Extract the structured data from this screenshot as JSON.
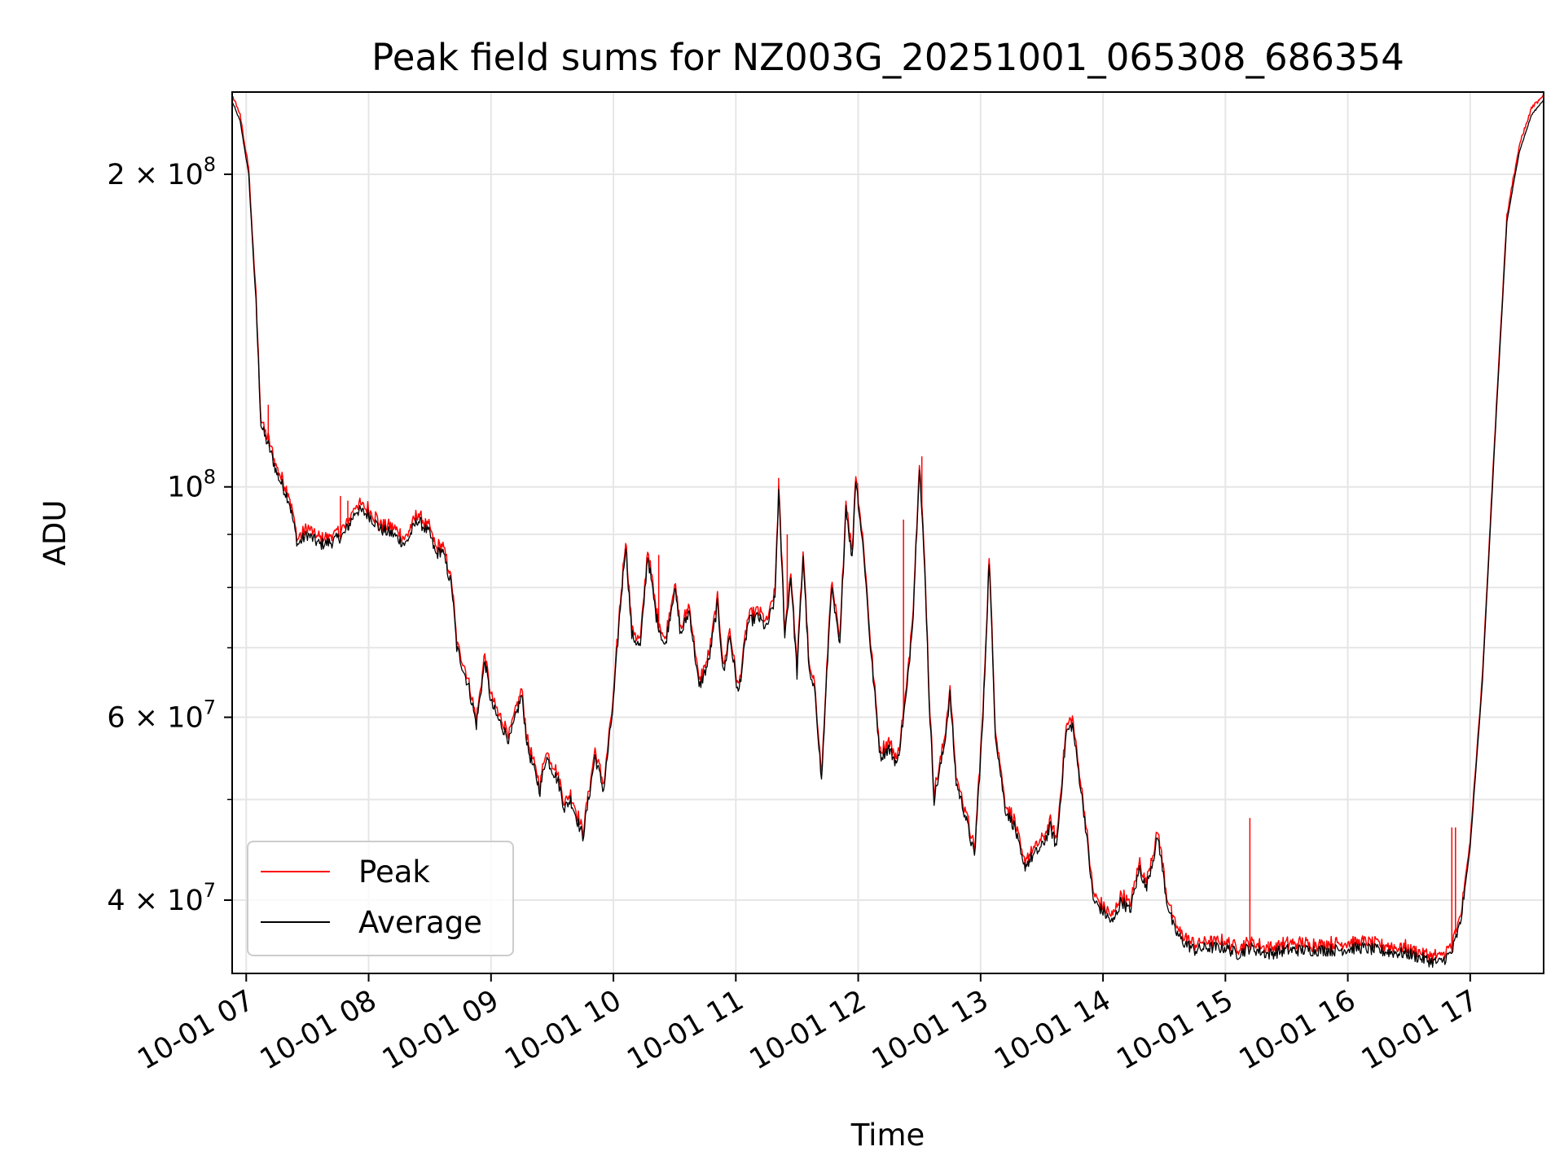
{
  "chart_data": {
    "type": "line",
    "title": "Peak field sums for NZ003G_20251001_065308_686354",
    "xlabel": "Time",
    "ylabel": "ADU",
    "yscale": "log",
    "ylim": [
      34000000,
      240000000
    ],
    "xlim_hours": [
      6.885,
      17.6
    ],
    "grid": true,
    "legend_location": "lower-left",
    "x_ticks": [
      {
        "h": 7,
        "label": "10-01 07"
      },
      {
        "h": 8,
        "label": "10-01 08"
      },
      {
        "h": 9,
        "label": "10-01 09"
      },
      {
        "h": 10,
        "label": "10-01 10"
      },
      {
        "h": 11,
        "label": "10-01 11"
      },
      {
        "h": 12,
        "label": "10-01 12"
      },
      {
        "h": 13,
        "label": "10-01 13"
      },
      {
        "h": 14,
        "label": "10-01 14"
      },
      {
        "h": 15,
        "label": "10-01 15"
      },
      {
        "h": 16,
        "label": "10-01 16"
      },
      {
        "h": 17,
        "label": "10-01 17"
      }
    ],
    "y_major_ticks": [
      {
        "v": 200000000,
        "base": "2 × 10",
        "exp": "8"
      },
      {
        "v": 100000000,
        "base": "10",
        "exp": "8"
      },
      {
        "v": 60000000,
        "base": "6 × 10",
        "exp": "7"
      },
      {
        "v": 40000000,
        "base": "4 × 10",
        "exp": "7"
      }
    ],
    "y_minor_ticks": [
      30000000,
      50000000,
      70000000,
      80000000,
      90000000
    ],
    "series": [
      {
        "name": "Peak",
        "color": "#ff0000",
        "line_width": 1
      },
      {
        "name": "Average",
        "color": "#000000",
        "line_width": 1
      }
    ],
    "average_points": [
      [
        6.885,
        235000000
      ],
      [
        6.95,
        225000000
      ],
      [
        7.02,
        200000000
      ],
      [
        7.08,
        150000000
      ],
      [
        7.12,
        115000000
      ],
      [
        7.15,
        112000000
      ],
      [
        7.2,
        108000000
      ],
      [
        7.25,
        103000000
      ],
      [
        7.3,
        100000000
      ],
      [
        7.35,
        97000000
      ],
      [
        7.42,
        88000000
      ],
      [
        7.5,
        90000000
      ],
      [
        7.6,
        88000000
      ],
      [
        7.7,
        88500000
      ],
      [
        7.8,
        90000000
      ],
      [
        7.9,
        95000000
      ],
      [
        8.0,
        94000000
      ],
      [
        8.1,
        91000000
      ],
      [
        8.2,
        90000000
      ],
      [
        8.3,
        88000000
      ],
      [
        8.4,
        93000000
      ],
      [
        8.5,
        90000000
      ],
      [
        8.55,
        86000000
      ],
      [
        8.6,
        87000000
      ],
      [
        8.68,
        80000000
      ],
      [
        8.72,
        70000000
      ],
      [
        8.82,
        64000000
      ],
      [
        8.88,
        59000000
      ],
      [
        8.95,
        68000000
      ],
      [
        9.0,
        62000000
      ],
      [
        9.05,
        60000000
      ],
      [
        9.15,
        57000000
      ],
      [
        9.25,
        63000000
      ],
      [
        9.3,
        56000000
      ],
      [
        9.4,
        51000000
      ],
      [
        9.45,
        55000000
      ],
      [
        9.55,
        52000000
      ],
      [
        9.6,
        49000000
      ],
      [
        9.65,
        50000000
      ],
      [
        9.75,
        46000000
      ],
      [
        9.85,
        55000000
      ],
      [
        9.92,
        51000000
      ],
      [
        10.0,
        62000000
      ],
      [
        10.05,
        75000000
      ],
      [
        10.1,
        88000000
      ],
      [
        10.15,
        72000000
      ],
      [
        10.22,
        70000000
      ],
      [
        10.28,
        86000000
      ],
      [
        10.35,
        75000000
      ],
      [
        10.42,
        70000000
      ],
      [
        10.5,
        80000000
      ],
      [
        10.55,
        72000000
      ],
      [
        10.62,
        76000000
      ],
      [
        10.7,
        64000000
      ],
      [
        10.78,
        68000000
      ],
      [
        10.85,
        77000000
      ],
      [
        10.9,
        66000000
      ],
      [
        10.95,
        72000000
      ],
      [
        11.02,
        63000000
      ],
      [
        11.1,
        74000000
      ],
      [
        11.18,
        75000000
      ],
      [
        11.25,
        73000000
      ],
      [
        11.32,
        78000000
      ],
      [
        11.35,
        99000000
      ],
      [
        11.4,
        72000000
      ],
      [
        11.45,
        82000000
      ],
      [
        11.5,
        66000000
      ],
      [
        11.55,
        86000000
      ],
      [
        11.6,
        66000000
      ],
      [
        11.65,
        63000000
      ],
      [
        11.7,
        52000000
      ],
      [
        11.78,
        80000000
      ],
      [
        11.85,
        70000000
      ],
      [
        11.9,
        96000000
      ],
      [
        11.95,
        85000000
      ],
      [
        11.98,
        102000000
      ],
      [
        12.05,
        85000000
      ],
      [
        12.1,
        70000000
      ],
      [
        12.18,
        55000000
      ],
      [
        12.25,
        56000000
      ],
      [
        12.32,
        54000000
      ],
      [
        12.4,
        64000000
      ],
      [
        12.45,
        76000000
      ],
      [
        12.5,
        105000000
      ],
      [
        12.55,
        80000000
      ],
      [
        12.58,
        62000000
      ],
      [
        12.62,
        50000000
      ],
      [
        12.7,
        56000000
      ],
      [
        12.75,
        63000000
      ],
      [
        12.8,
        52000000
      ],
      [
        12.88,
        48000000
      ],
      [
        12.95,
        44000000
      ],
      [
        13.02,
        60000000
      ],
      [
        13.07,
        85000000
      ],
      [
        13.12,
        58000000
      ],
      [
        13.2,
        49000000
      ],
      [
        13.28,
        47000000
      ],
      [
        13.35,
        43000000
      ],
      [
        13.42,
        44000000
      ],
      [
        13.5,
        45000000
      ],
      [
        13.57,
        47000000
      ],
      [
        13.62,
        45000000
      ],
      [
        13.7,
        58000000
      ],
      [
        13.75,
        59000000
      ],
      [
        13.85,
        48000000
      ],
      [
        13.92,
        40000000
      ],
      [
        14.0,
        39000000
      ],
      [
        14.08,
        38000000
      ],
      [
        14.15,
        40000000
      ],
      [
        14.22,
        39000000
      ],
      [
        14.3,
        43000000
      ],
      [
        14.35,
        41000000
      ],
      [
        14.45,
        46000000
      ],
      [
        14.52,
        40000000
      ],
      [
        14.58,
        37500000
      ],
      [
        14.65,
        36500000
      ],
      [
        14.75,
        35800000
      ],
      [
        14.85,
        36000000
      ],
      [
        15.0,
        36000000
      ],
      [
        15.1,
        35500000
      ],
      [
        15.2,
        36000000
      ],
      [
        15.35,
        35500000
      ],
      [
        15.5,
        35800000
      ],
      [
        15.7,
        35800000
      ],
      [
        15.9,
        35800000
      ],
      [
        16.1,
        36000000
      ],
      [
        16.3,
        35700000
      ],
      [
        16.5,
        35500000
      ],
      [
        16.65,
        35000000
      ],
      [
        16.75,
        34800000
      ],
      [
        16.85,
        35600000
      ],
      [
        16.92,
        38000000
      ],
      [
        17.0,
        45000000
      ],
      [
        17.1,
        65000000
      ],
      [
        17.2,
        110000000
      ],
      [
        17.3,
        180000000
      ],
      [
        17.4,
        210000000
      ],
      [
        17.5,
        228000000
      ],
      [
        17.6,
        236000000
      ]
    ],
    "peak_spikes": [
      [
        7.18,
        120000000
      ],
      [
        7.77,
        98000000
      ],
      [
        7.83,
        97000000
      ],
      [
        7.92,
        95000000
      ],
      [
        8.08,
        92000000
      ],
      [
        10.37,
        86000000
      ],
      [
        11.35,
        102000000
      ],
      [
        11.42,
        90000000
      ],
      [
        12.37,
        93000000
      ],
      [
        12.52,
        107000000
      ],
      [
        15.2,
        48000000
      ],
      [
        15.35,
        36500000
      ],
      [
        16.85,
        47000000
      ],
      [
        16.88,
        47000000
      ]
    ]
  }
}
